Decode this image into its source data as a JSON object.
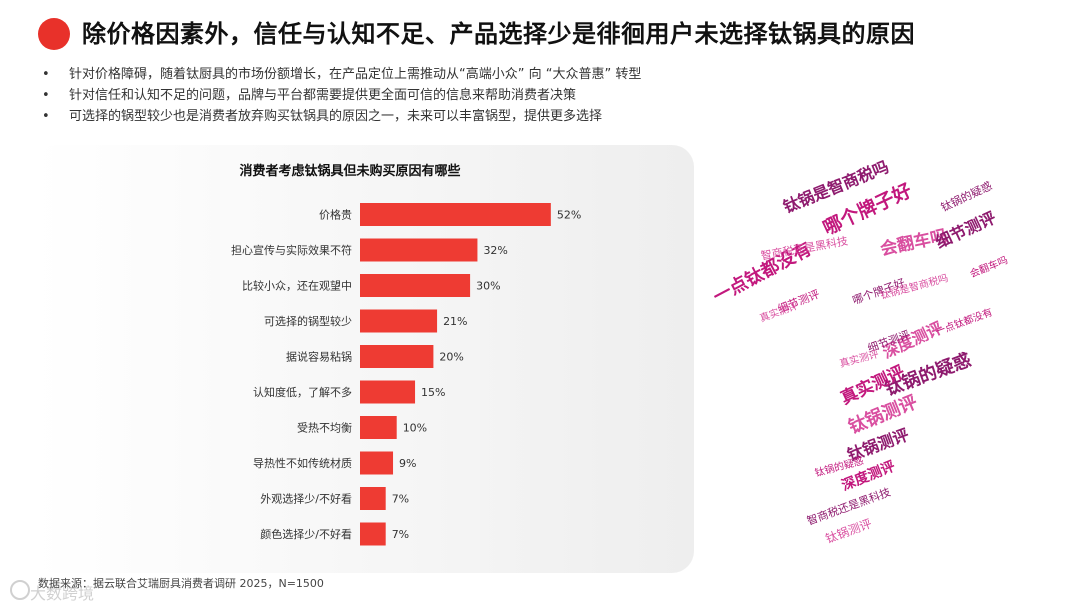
{
  "header": {
    "title": "除价格因素外，信任与认知不足、产品选择少是徘徊用户未选择钛锅具的原因"
  },
  "bullets": [
    "针对价格障碍，随着钛厨具的市场份额增长，在产品定位上需推动从“高端小众” 向 “大众普惠” 转型",
    "针对信任和认知不足的问题，品牌与平台都需要提供更全面可信的信息来帮助消费者决策",
    "可选择的锅型较少也是消费者放弃购买钛锅具的原因之一，未来可以丰富锅型，提供更多选择"
  ],
  "bullet_marker": "•",
  "chart_data": {
    "type": "bar",
    "orientation": "horizontal",
    "title": "消费者考虑钛锅具但未购买原因有哪些",
    "categories": [
      "价格贵",
      "担心宣传与实际效果不符",
      "比较小众，还在观望中",
      "可选择的锅型较少",
      "据说容易粘锅",
      "认知度低，了解不多",
      "受热不均衡",
      "导热性不如传统材质",
      "外观选择少/不好看",
      "颜色选择少/不好看"
    ],
    "values": [
      52,
      32,
      30,
      21,
      20,
      15,
      10,
      9,
      7,
      7
    ],
    "labels": [
      "52%",
      "32%",
      "30%",
      "21%",
      "20%",
      "15%",
      "10%",
      "9%",
      "7%",
      "7%"
    ],
    "xlim": [
      0,
      60
    ],
    "grid": false,
    "bar_color": "#ee3b33"
  },
  "source": "数据来源：据云联合艾瑞厨具消费者调研 2025，N=1500",
  "watermark": "大数跨境",
  "word_cloud": {
    "words": [
      "钛锅是智商税吗",
      "哪个牌子好",
      "会翻车吗",
      "细节测评",
      "一点钛都没有",
      "深度测评",
      "钛锅的疑惑",
      "真实测评",
      "钛锅测评",
      "钛锅测评",
      "深度测评",
      "智商税还是黑科技",
      "哪个牌子好",
      "细节测评",
      "真实测评",
      "钛锅的疑惑",
      "会翻车吗",
      "钛锅是智商税吗",
      "智商税还是黑科技",
      "一点钛都没有",
      "钛锅测评",
      "细节测评",
      "钛锅的疑惑",
      "真实测评"
    ],
    "colors": [
      "#8e1a6e",
      "#c2187d",
      "#d94fa0"
    ]
  }
}
